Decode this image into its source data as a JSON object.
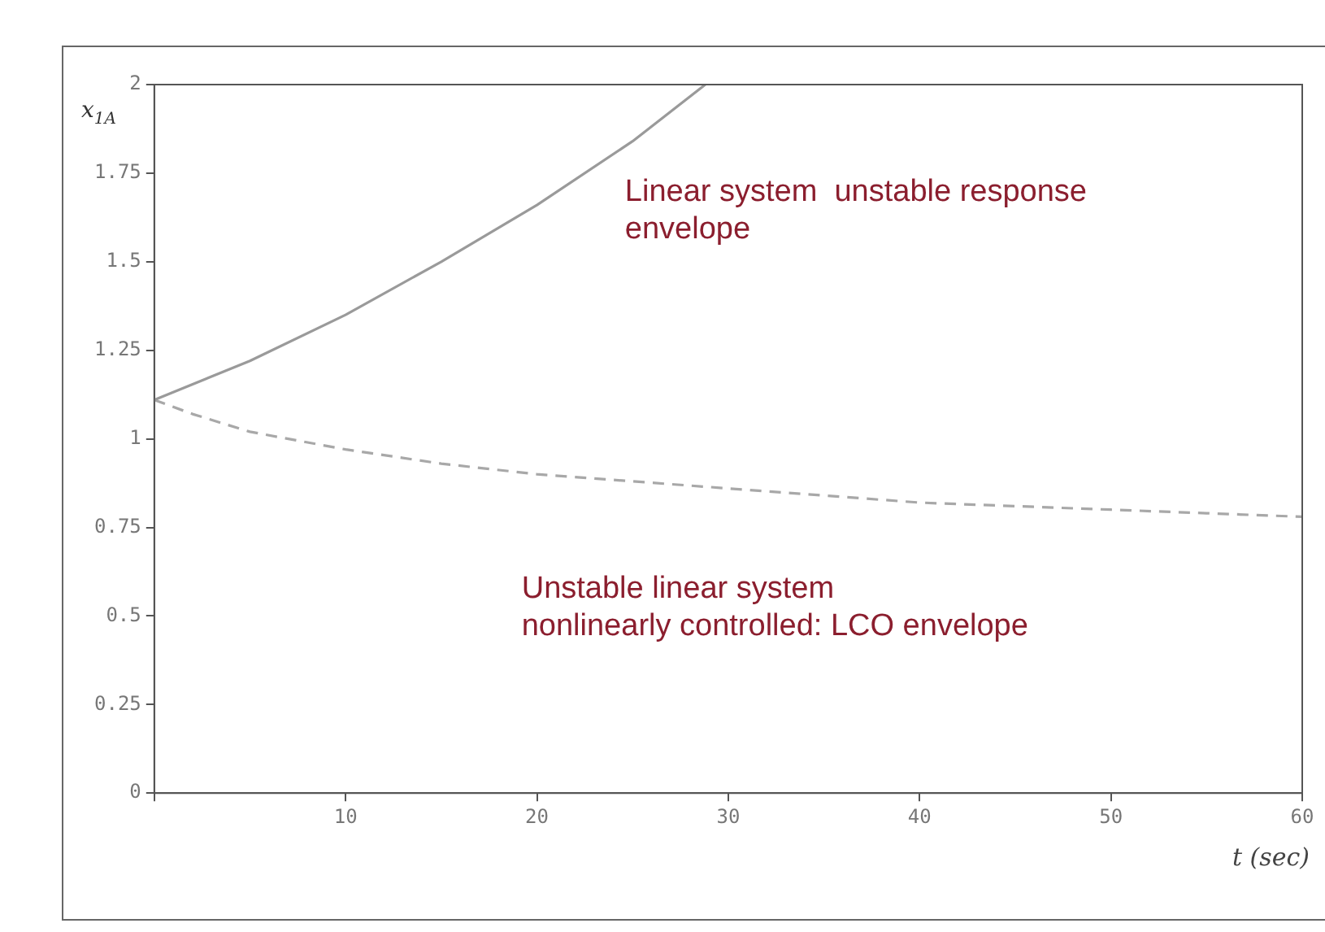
{
  "chart_data": {
    "type": "line",
    "xlabel": "t (sec)",
    "ylabel": "x$_{1A}$",
    "series": [
      {
        "color": "#9a9a9a",
        "line_style": "solid",
        "x": [
          0,
          5,
          10,
          15,
          20,
          25,
          28.8
        ],
        "values": [
          1.11,
          1.22,
          1.35,
          1.5,
          1.66,
          1.84,
          2.0
        ]
      },
      {
        "color": "#a8a8a8",
        "line_style": "dashed",
        "x": [
          0,
          2,
          5,
          10,
          15,
          20,
          25,
          30,
          35,
          40,
          45,
          50,
          55,
          60
        ],
        "values": [
          1.11,
          1.07,
          1.02,
          0.97,
          0.93,
          0.9,
          0.88,
          0.86,
          0.84,
          0.82,
          0.81,
          0.8,
          0.79,
          0.78
        ]
      }
    ],
    "xlim": [
      0,
      60
    ],
    "xticks": [
      {
        "value": 0,
        "label": null
      },
      10,
      20,
      30,
      40,
      50,
      60
    ],
    "ylim": [
      0,
      2
    ],
    "yticks": [
      0,
      0.25,
      0.5,
      0.75,
      1,
      1.25,
      1.5,
      1.75,
      2
    ],
    "grid": false,
    "legend": false,
    "marker": "none",
    "annotations": [
      "Linear system  unstable response\nenvelope",
      "Unstable linear system\nnonlinearly controlled: LCO envelope"
    ]
  }
}
